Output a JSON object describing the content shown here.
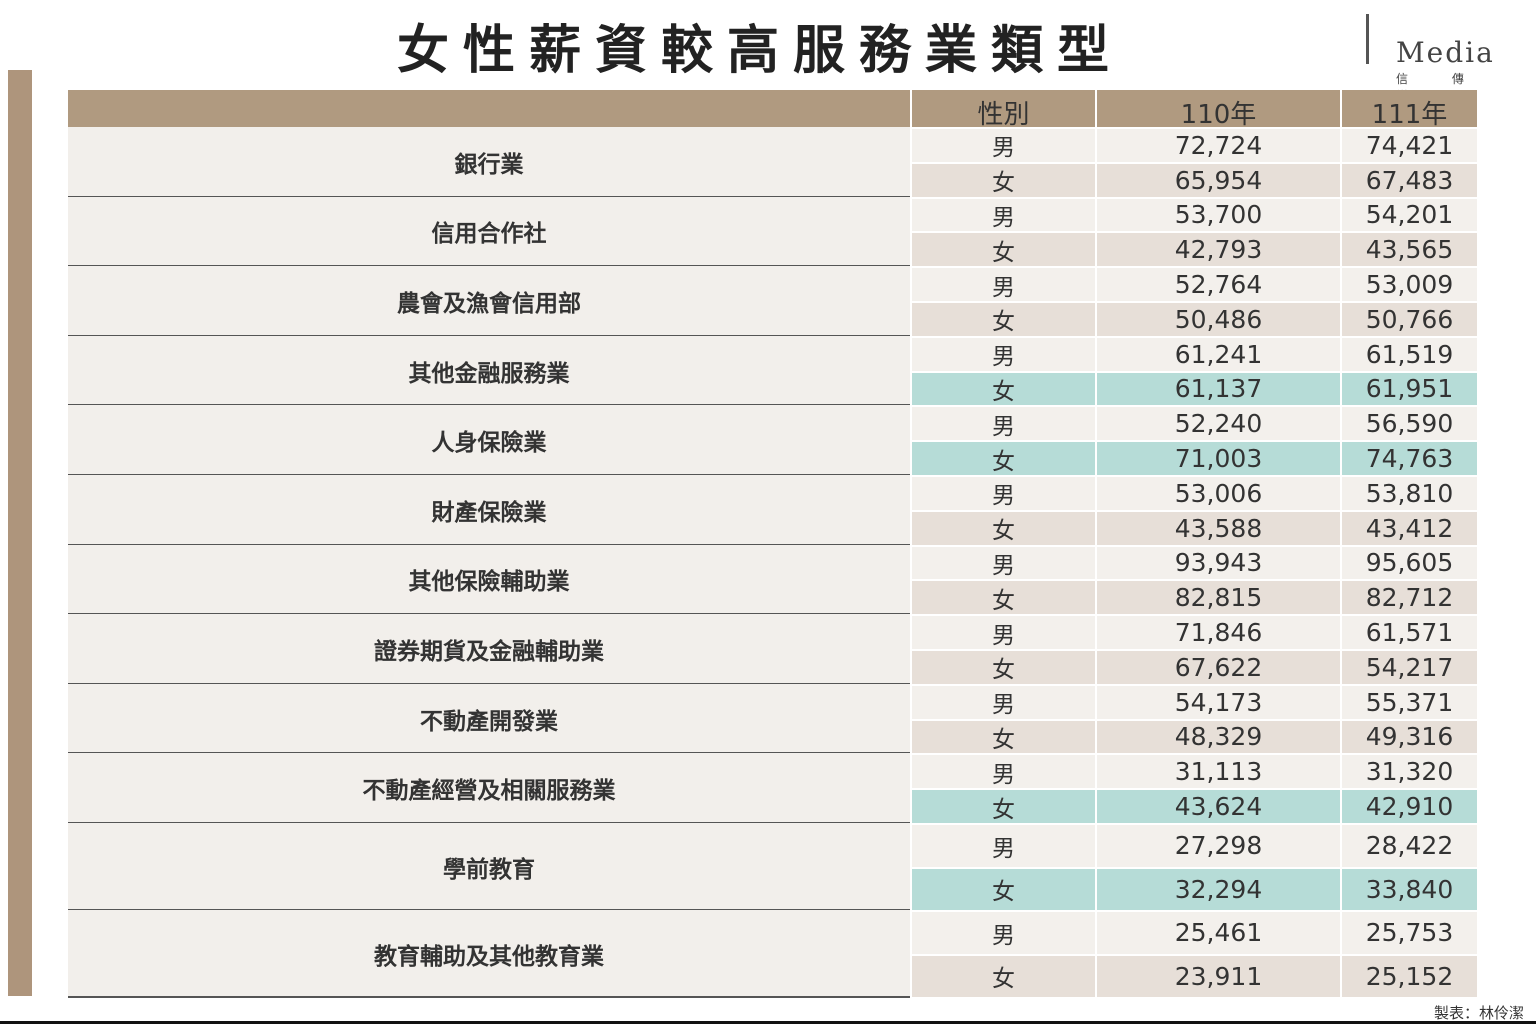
{
  "header": {
    "title": "女性薪資較高服務業類型",
    "logo": "Media",
    "logo_sub": "信 傳 媒"
  },
  "table": {
    "columns": [
      "性別",
      "110年",
      "111年"
    ],
    "highlight_color": "#b6dcd7",
    "groups": [
      {
        "name": "銀行業",
        "rows": [
          {
            "gender": "男",
            "y110": "72,724",
            "y111": "74,421"
          },
          {
            "gender": "女",
            "y110": "65,954",
            "y111": "67,483"
          }
        ]
      },
      {
        "name": "信用合作社",
        "rows": [
          {
            "gender": "男",
            "y110": "53,700",
            "y111": "54,201"
          },
          {
            "gender": "女",
            "y110": "42,793",
            "y111": "43,565"
          }
        ]
      },
      {
        "name": "農會及漁會信用部",
        "rows": [
          {
            "gender": "男",
            "y110": "52,764",
            "y111": "53,009"
          },
          {
            "gender": "女",
            "y110": "50,486",
            "y111": "50,766"
          }
        ]
      },
      {
        "name": "其他金融服務業",
        "rows": [
          {
            "gender": "男",
            "y110": "61,241",
            "y111": "61,519"
          },
          {
            "gender": "女",
            "y110": "61,137",
            "y111": "61,951",
            "highlight": true
          }
        ]
      },
      {
        "name": "人身保險業",
        "rows": [
          {
            "gender": "男",
            "y110": "52,240",
            "y111": "56,590"
          },
          {
            "gender": "女",
            "y110": "71,003",
            "y111": "74,763",
            "highlight": true
          }
        ]
      },
      {
        "name": "財產保險業",
        "rows": [
          {
            "gender": "男",
            "y110": "53,006",
            "y111": "53,810"
          },
          {
            "gender": "女",
            "y110": "43,588",
            "y111": "43,412"
          }
        ]
      },
      {
        "name": "其他保險輔助業",
        "rows": [
          {
            "gender": "男",
            "y110": "93,943",
            "y111": "95,605"
          },
          {
            "gender": "女",
            "y110": "82,815",
            "y111": "82,712"
          }
        ]
      },
      {
        "name": "證券期貨及金融輔助業",
        "rows": [
          {
            "gender": "男",
            "y110": "71,846",
            "y111": "61,571"
          },
          {
            "gender": "女",
            "y110": "67,622",
            "y111": "54,217"
          }
        ]
      },
      {
        "name": "不動產開發業",
        "rows": [
          {
            "gender": "男",
            "y110": "54,173",
            "y111": "55,371"
          },
          {
            "gender": "女",
            "y110": "48,329",
            "y111": "49,316"
          }
        ]
      },
      {
        "name": "不動產經營及相關服務業",
        "rows": [
          {
            "gender": "男",
            "y110": "31,113",
            "y111": "31,320"
          },
          {
            "gender": "女",
            "y110": "43,624",
            "y111": "42,910",
            "highlight": true
          }
        ]
      },
      {
        "name": "學前教育",
        "rows": [
          {
            "gender": "男",
            "y110": "27,298",
            "y111": "28,422"
          },
          {
            "gender": "女",
            "y110": "32,294",
            "y111": "33,840",
            "highlight": true
          }
        ]
      },
      {
        "name": "教育輔助及其他教育業",
        "rows": [
          {
            "gender": "男",
            "y110": "25,461",
            "y111": "25,753"
          },
          {
            "gender": "女",
            "y110": "23,911",
            "y111": "25,152"
          }
        ]
      }
    ]
  },
  "footer": {
    "credit": "製表：林伶潔"
  }
}
